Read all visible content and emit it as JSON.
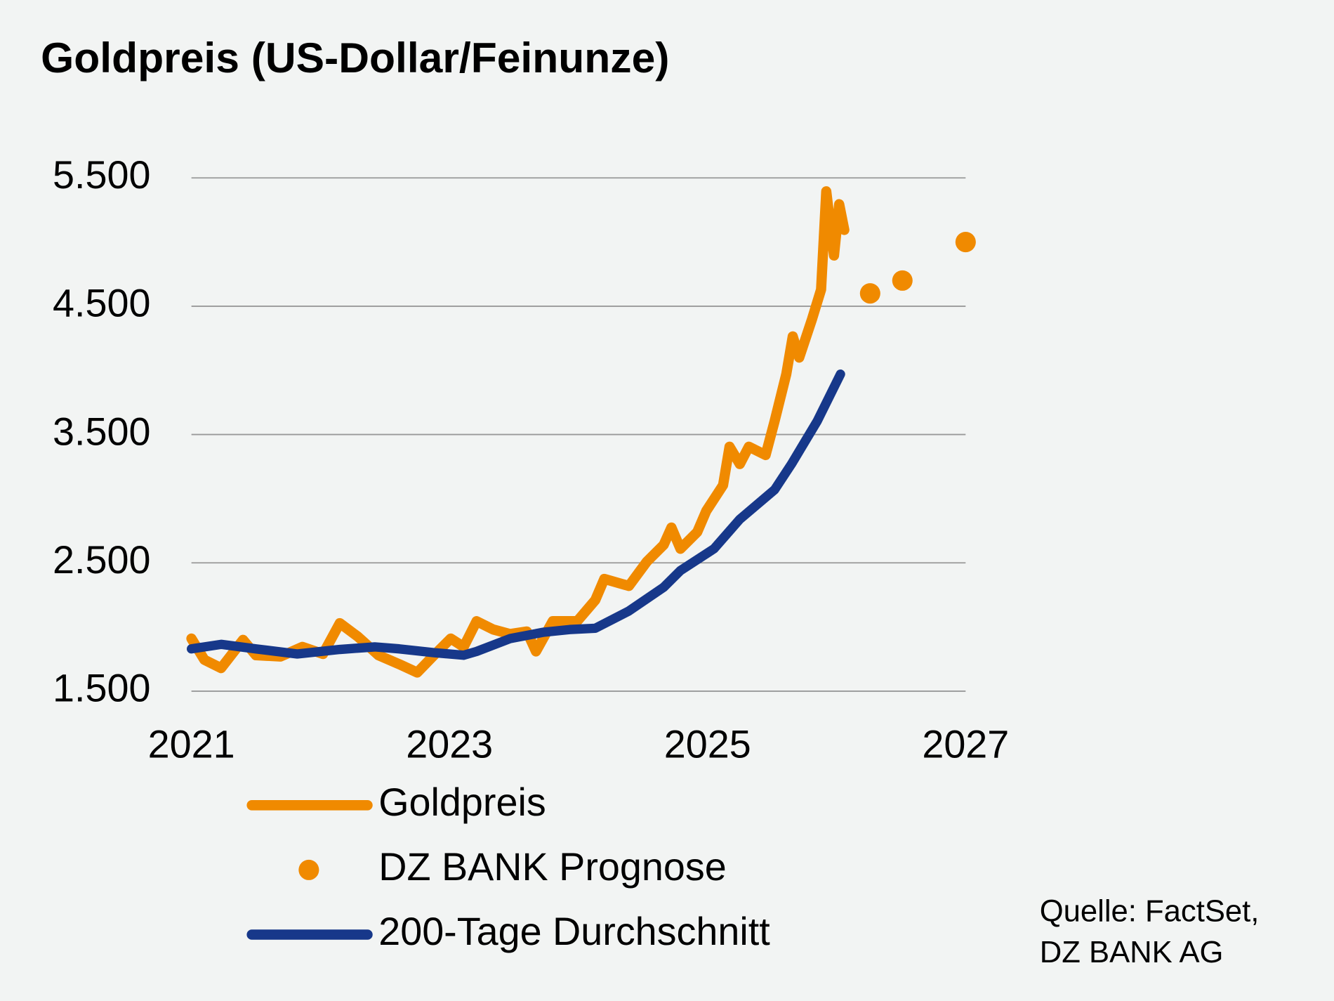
{
  "chart_data": {
    "type": "line",
    "title": "Goldpreis (US-Dollar/Feinunze)",
    "source": [
      "Quelle: FactSet,",
      "DZ BANK AG"
    ],
    "xlim": [
      2021,
      2027
    ],
    "xticks": [
      2021,
      2023,
      2025,
      2027
    ],
    "ylim": [
      1500,
      5500
    ],
    "yticks": [
      {
        "value": 1500,
        "label": "1.500"
      },
      {
        "value": 2500,
        "label": "2.500"
      },
      {
        "value": 3500,
        "label": "3.500"
      },
      {
        "value": 4500,
        "label": "4.500"
      },
      {
        "value": 5500,
        "label": "5.500"
      }
    ],
    "grid": true,
    "series": [
      {
        "name": "Goldpreis",
        "color": "#f08a00",
        "mode": "line",
        "x": [
          2021.0,
          2021.1,
          2021.23,
          2021.4,
          2021.5,
          2021.69,
          2021.86,
          2022.02,
          2022.15,
          2022.29,
          2022.45,
          2022.61,
          2022.75,
          2022.88,
          2023.01,
          2023.11,
          2023.21,
          2023.34,
          2023.47,
          2023.6,
          2023.67,
          2023.8,
          2023.99,
          2024.13,
          2024.2,
          2024.39,
          2024.53,
          2024.66,
          2024.72,
          2024.79,
          2024.92,
          2024.99,
          2025.12,
          2025.17,
          2025.25,
          2025.32,
          2025.45,
          2025.52,
          2025.61,
          2025.66,
          2025.71,
          2025.81,
          2025.88,
          2025.92,
          2025.98,
          2026.02,
          2026.06
        ],
        "values": [
          1910,
          1745,
          1680,
          1900,
          1780,
          1770,
          1845,
          1790,
          2030,
          1925,
          1780,
          1710,
          1645,
          1780,
          1910,
          1845,
          2045,
          1980,
          1945,
          1965,
          1810,
          2045,
          2045,
          2210,
          2375,
          2320,
          2510,
          2640,
          2775,
          2610,
          2740,
          2905,
          3105,
          3405,
          3270,
          3405,
          3340,
          3605,
          3970,
          4265,
          4100,
          4400,
          4630,
          5395,
          4895,
          5295,
          5095
        ]
      },
      {
        "name": "DZ BANK Prognose",
        "color": "#f08a00",
        "mode": "markers",
        "x": [
          2026.26,
          2026.51,
          2027.0
        ],
        "values": [
          4600,
          4700,
          5000
        ]
      },
      {
        "name": "200-Tage Durchschnitt",
        "color": "#17388a",
        "mode": "line",
        "x": [
          2021.0,
          2021.23,
          2021.5,
          2021.82,
          2022.15,
          2022.42,
          2022.61,
          2022.88,
          2023.11,
          2023.21,
          2023.47,
          2023.73,
          2023.93,
          2024.13,
          2024.39,
          2024.66,
          2024.79,
          2025.05,
          2025.25,
          2025.52,
          2025.65,
          2025.85,
          2026.03
        ],
        "values": [
          1830,
          1865,
          1830,
          1790,
          1825,
          1845,
          1830,
          1800,
          1780,
          1810,
          1910,
          1960,
          1980,
          1990,
          2125,
          2310,
          2440,
          2610,
          2840,
          3070,
          3270,
          3605,
          3970
        ]
      }
    ]
  }
}
